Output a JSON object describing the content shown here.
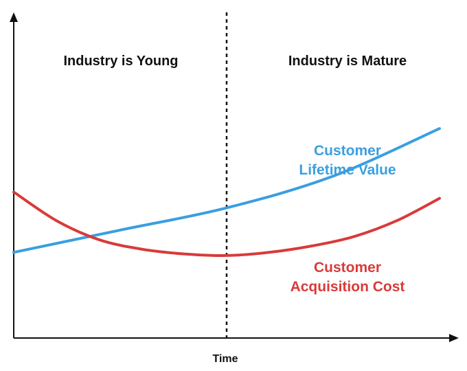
{
  "chart_data": {
    "type": "line",
    "title": "",
    "xlabel": "Time",
    "ylabel": "",
    "x_ticks_shown": false,
    "y_ticks_shown": false,
    "grid": false,
    "xlim": [
      0,
      100
    ],
    "ylim": [
      0,
      100
    ],
    "divider": {
      "x": 50,
      "style": "dashed"
    },
    "regions": [
      {
        "label": "Industry is Young",
        "x_range": [
          0,
          50
        ]
      },
      {
        "label": "Industry is Mature",
        "x_range": [
          50,
          100
        ]
      }
    ],
    "series": [
      {
        "name_lines": [
          "Customer",
          "Lifetime Value"
        ],
        "color": "#3a9fe0",
        "x": [
          0,
          25,
          50,
          75,
          100
        ],
        "values": [
          27,
          34,
          41,
          51,
          66
        ]
      },
      {
        "name_lines": [
          "Customer",
          "Acquisition Cost"
        ],
        "color": "#d93a3a",
        "x": [
          0,
          10,
          20,
          30,
          40,
          50,
          60,
          70,
          80,
          90,
          100
        ],
        "values": [
          46,
          37,
          31,
          28,
          26.5,
          26,
          27,
          29,
          32,
          37,
          44
        ]
      }
    ]
  }
}
